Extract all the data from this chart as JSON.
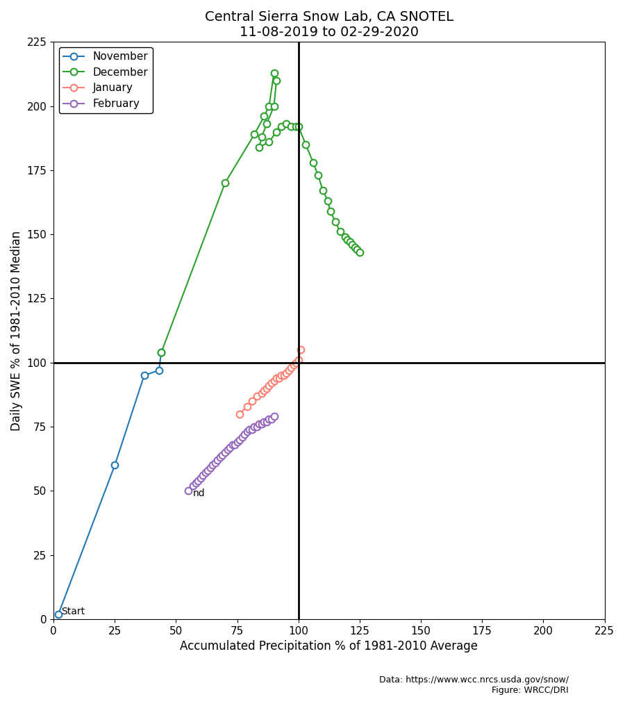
{
  "title": "Central Sierra Snow Lab, CA SNOTEL\n11-08-2019 to 02-29-2020",
  "xlabel": "Accumulated Precipitation % of 1981-2010 Average",
  "ylabel": "Daily SWE % of 1981-2010 Median",
  "xlim": [
    0,
    225
  ],
  "ylim": [
    0,
    225
  ],
  "xticks": [
    0,
    25,
    50,
    75,
    100,
    125,
    150,
    175,
    200,
    225
  ],
  "yticks": [
    0,
    25,
    50,
    75,
    100,
    125,
    150,
    175,
    200,
    225
  ],
  "hline": 100,
  "vline": 100,
  "source_text": "Data: https://www.wcc.nrcs.usda.gov/snow/\nFigure: WRCC/DRI",
  "start_label": "Start",
  "end_label": "nd",
  "november_color": "#1f77b4",
  "december_color": "#2ca02c",
  "january_color": "#fa8072",
  "february_color": "#9467bd",
  "november_x": [
    2,
    25,
    37,
    43,
    44
  ],
  "november_y": [
    2,
    60,
    95,
    97,
    104
  ],
  "december_x": [
    44,
    70,
    82,
    86,
    88,
    90,
    91,
    90,
    87,
    85,
    84,
    88,
    91,
    93,
    95,
    97,
    99,
    100,
    103,
    106,
    108,
    110,
    112,
    113,
    115,
    117,
    119,
    120,
    121,
    122,
    123,
    124,
    125
  ],
  "december_y": [
    104,
    170,
    189,
    196,
    200,
    213,
    210,
    200,
    193,
    188,
    184,
    186,
    190,
    192,
    193,
    192,
    192,
    192,
    185,
    178,
    173,
    167,
    163,
    159,
    155,
    151,
    149,
    148,
    147,
    146,
    145,
    144,
    143
  ],
  "january_x": [
    76,
    79,
    81,
    83,
    85,
    86,
    87,
    88,
    89,
    90,
    91,
    92,
    93,
    94,
    95,
    96,
    97,
    98,
    99,
    100,
    101
  ],
  "january_y": [
    80,
    83,
    85,
    87,
    88,
    89,
    90,
    91,
    92,
    93,
    94,
    94,
    95,
    95,
    96,
    97,
    98,
    99,
    100,
    101,
    105
  ],
  "february_x": [
    55,
    57,
    58,
    59,
    60,
    61,
    62,
    63,
    64,
    65,
    66,
    67,
    68,
    69,
    70,
    71,
    72,
    73,
    74,
    75,
    76,
    77,
    78,
    79,
    80,
    81,
    82,
    83,
    84,
    85,
    86,
    87,
    88,
    89,
    90
  ],
  "february_y": [
    50,
    52,
    53,
    54,
    55,
    56,
    57,
    58,
    59,
    60,
    61,
    62,
    63,
    64,
    65,
    66,
    67,
    68,
    68,
    69,
    70,
    71,
    72,
    73,
    74,
    74,
    75,
    75,
    76,
    76,
    77,
    77,
    78,
    78,
    79
  ],
  "marker_size": 7,
  "line_width": 1.5,
  "title_fontsize": 14,
  "label_fontsize": 12,
  "tick_fontsize": 11,
  "legend_fontsize": 11,
  "source_fontsize": 9
}
